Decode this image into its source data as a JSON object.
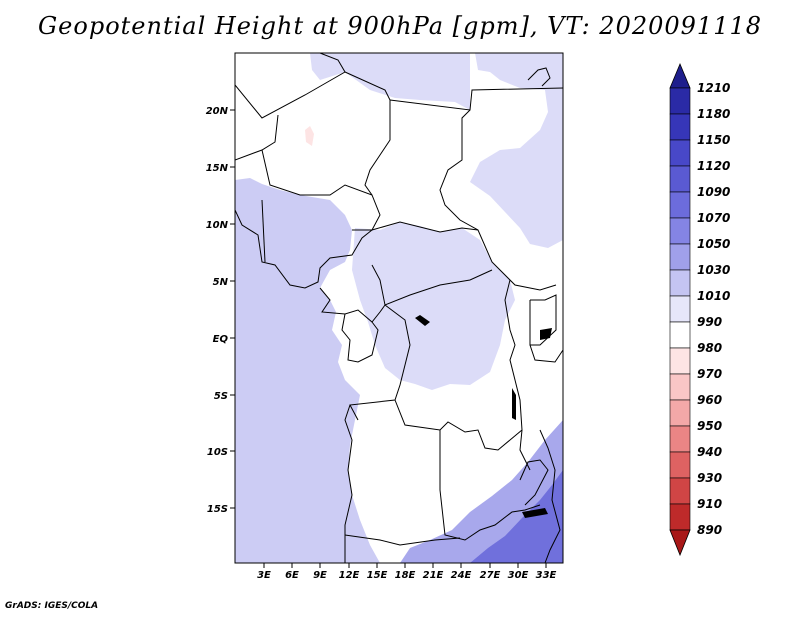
{
  "title": "Geopotential Height at 900hPa [gpm], VT: 2020091118",
  "credit": "GrADS: IGES/COLA",
  "lat_ticks": [
    "20N",
    "15N",
    "10N",
    "5N",
    "EQ",
    "5S",
    "10S",
    "15S"
  ],
  "lon_ticks": [
    "3E",
    "6E",
    "9E",
    "12E",
    "15E",
    "18E",
    "21E",
    "24E",
    "27E",
    "30E",
    "33E"
  ],
  "colorbar": {
    "levels": [
      "1210",
      "1180",
      "1150",
      "1120",
      "1090",
      "1070",
      "1050",
      "1030",
      "1010",
      "990",
      "980",
      "970",
      "960",
      "950",
      "940",
      "930",
      "910",
      "890"
    ],
    "colors": [
      "#1e1e8c",
      "#2a2aa6",
      "#3636b8",
      "#4848c8",
      "#5a5ad2",
      "#6c6cdc",
      "#8484e4",
      "#a0a0ea",
      "#c4c4f2",
      "#e6e6fa",
      "#ffffff",
      "#fde4e4",
      "#f9c6c6",
      "#f3a8a8",
      "#ea8585",
      "#de6262",
      "#d04545",
      "#be2a2a",
      "#a81818"
    ]
  },
  "colors": {
    "ocean_fill": "#ccccf4",
    "land_low": "#ffffff",
    "light_blue": "#dcdcf8",
    "mid_blue": "#a8a8ec",
    "deep_blue": "#7070dc",
    "border": "#000000"
  }
}
